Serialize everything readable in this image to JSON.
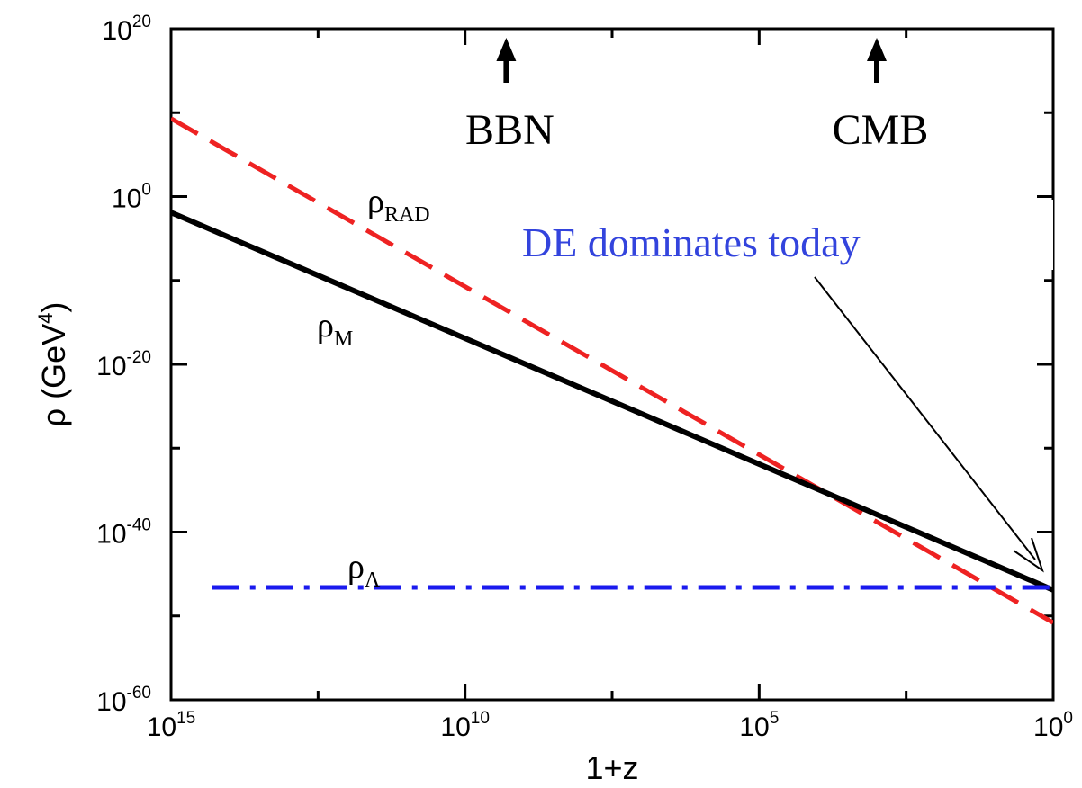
{
  "chart_data": {
    "type": "line",
    "x_axis": {
      "label": "1+z",
      "scale": "log",
      "reversed": true,
      "range": [
        1000000000000000.0,
        1
      ],
      "ticks": [
        {
          "base": "10",
          "exp": "15",
          "value": 1000000000000000.0
        },
        {
          "base": "10",
          "exp": "10",
          "value": 10000000000.0
        },
        {
          "base": "10",
          "exp": "5",
          "value": 100000.0
        },
        {
          "base": "10",
          "exp": "0",
          "value": 1
        }
      ]
    },
    "y_axis": {
      "label_main": "ρ (GeV",
      "label_sup": "4",
      "label_end": ")",
      "scale": "log",
      "range": [
        1e-60,
        1e+20
      ],
      "ticks": [
        {
          "base": "10",
          "exp": "20",
          "value": 1e+20
        },
        {
          "base": "10",
          "exp": "0",
          "value": 1
        },
        {
          "base": "10",
          "exp": "-20",
          "value": 1e-20
        },
        {
          "base": "10",
          "exp": "-40",
          "value": 1e-40
        },
        {
          "base": "10",
          "exp": "-60",
          "value": 1e-60
        }
      ]
    },
    "series": [
      {
        "key": "rad",
        "label_main": "ρ",
        "label_sub": "RAD",
        "color": "#ee2222",
        "style": "dashed",
        "x_log10": [
          15,
          0
        ],
        "y_log10": [
          9.3,
          -50.8
        ]
      },
      {
        "key": "matter",
        "label_main": "ρ",
        "label_sub": "M",
        "color": "#000000",
        "style": "solid",
        "x_log10": [
          15,
          0
        ],
        "y_log10": [
          -1.9,
          -46.9
        ]
      },
      {
        "key": "lambda",
        "label_main": "ρ",
        "label_sub": "Λ",
        "color": "#1a1aee",
        "style": "dash-dot",
        "x_log10": [
          14.3,
          0
        ],
        "y_log10": [
          -46.6,
          -46.6
        ]
      }
    ],
    "annotations": {
      "bbn": {
        "text": "BBN",
        "x_log10": 9.3
      },
      "cmb": {
        "text": "CMB",
        "x_log10": 3.0
      },
      "de": {
        "text": "DE dominates today",
        "color": "#3344dd"
      }
    },
    "grid": false
  }
}
